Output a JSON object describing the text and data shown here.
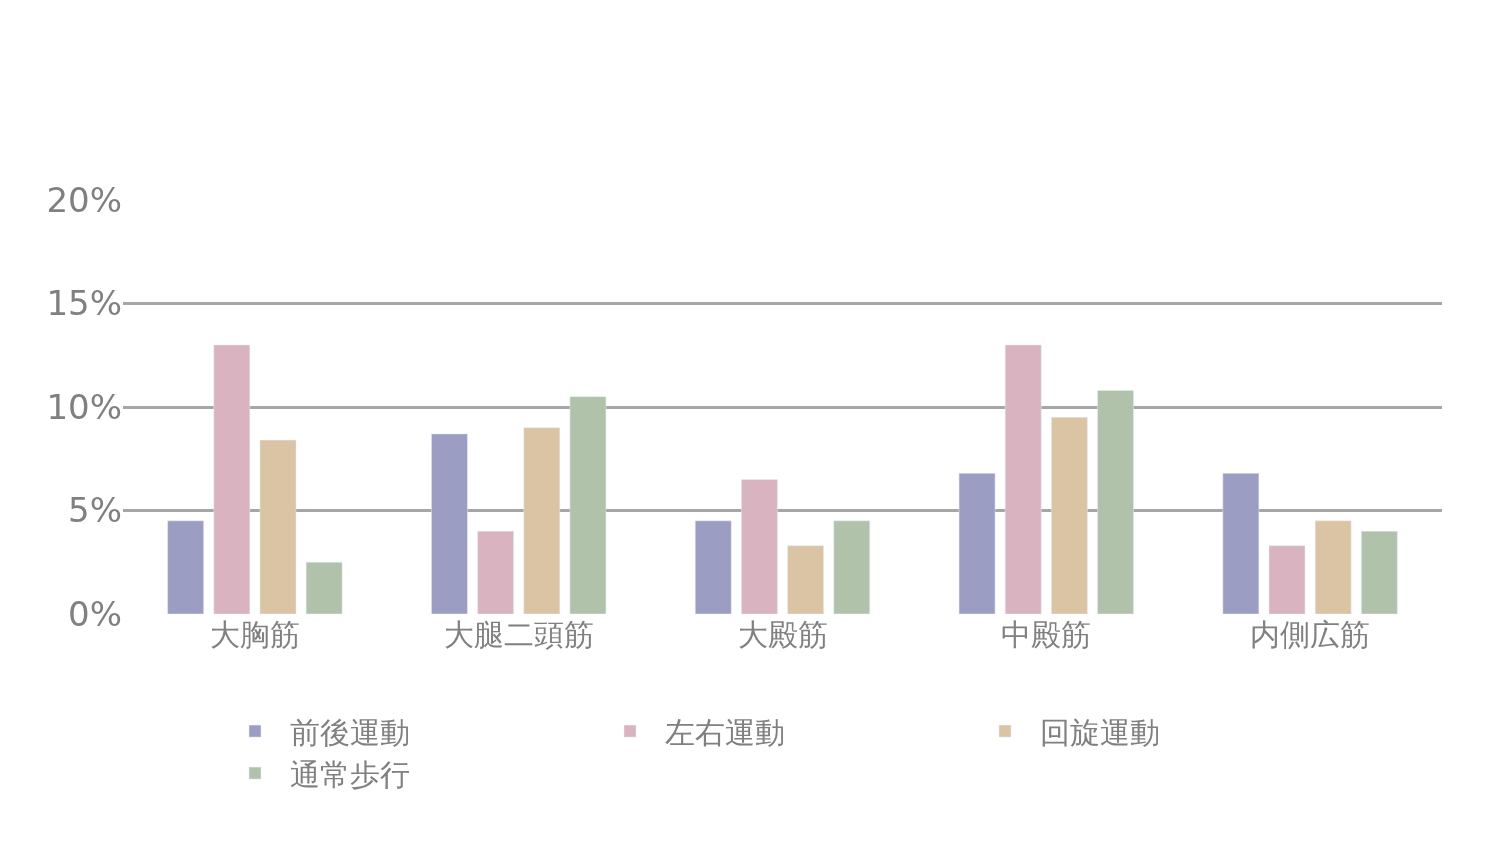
{
  "chart_data": {
    "type": "bar",
    "categories": [
      "大胸筋",
      "大腿二頭筋",
      "大殿筋",
      "中殿筋",
      "内側広筋"
    ],
    "series": [
      {
        "name": "前後運動",
        "color": "#9b9ec2",
        "values": [
          4.5,
          8.7,
          4.5,
          6.8,
          6.8
        ]
      },
      {
        "name": "左右運動",
        "color": "#d9b3c0",
        "values": [
          13,
          4.0,
          6.5,
          13,
          3.3
        ]
      },
      {
        "name": "回旋運動",
        "color": "#dbc4a4",
        "values": [
          8.4,
          9.0,
          3.3,
          9.5,
          4.5
        ]
      },
      {
        "name": "通常歩行",
        "color": "#b1c2ab",
        "values": [
          2.5,
          10.5,
          4.5,
          10.8,
          4.0
        ]
      }
    ],
    "ylim": [
      0,
      20
    ],
    "yticks": [
      {
        "value": 0,
        "label": "0%"
      },
      {
        "value": 5,
        "label": "5%"
      },
      {
        "value": 10,
        "label": "10%"
      },
      {
        "value": 15,
        "label": "15%"
      },
      {
        "value": 20,
        "label": "20%"
      }
    ],
    "grid": "y",
    "legend": "bottom"
  }
}
